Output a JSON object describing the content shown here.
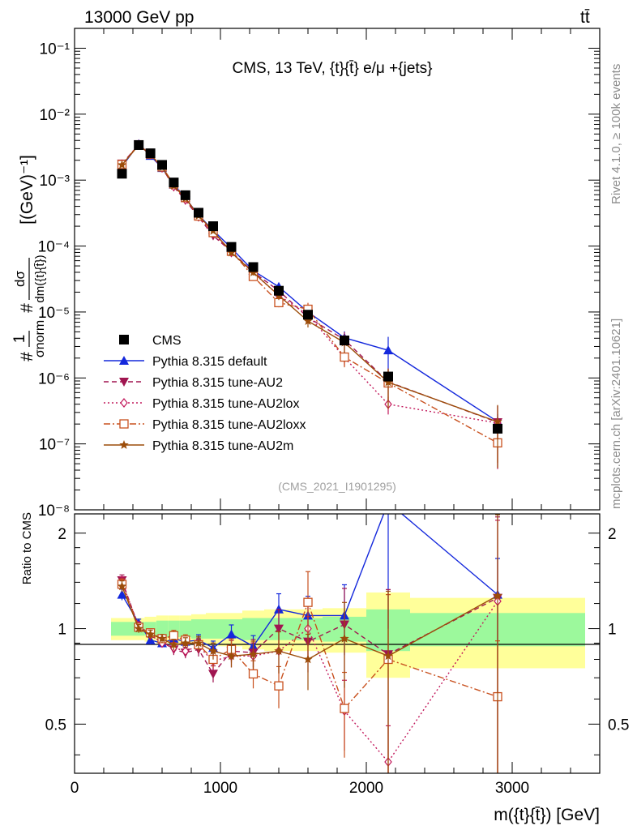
{
  "header": {
    "left": "13000 GeV pp",
    "right": "tt̄"
  },
  "side_labels": {
    "rivet": "Rivet 4.1.0, ≥ 100k events",
    "mcplots": "mcplots.cern.ch [arXiv:2401.10621]"
  },
  "chart_data": {
    "type": "line",
    "title": "CMS, 13 TeV, {t}{t̄} e/μ +{jets}",
    "watermark": "(CMS_2021_I1901295)",
    "xlabel": "m({t}{t̄}) [GeV]",
    "ylabel_main": "#1/σnorm # dσ/dm({t}{t̄}) [(GeV)⁻¹]",
    "ylabel_ratio": "Ratio to CMS",
    "xlim": [
      0,
      3600
    ],
    "ylim_main": [
      1e-08,
      0.2
    ],
    "ylim_ratio": [
      0.35,
      2.3
    ],
    "x_ticks": [
      "0",
      "1000",
      "2000",
      "3000"
    ],
    "y_ticks_main": [
      "10⁻⁸",
      "10⁻⁷",
      "10⁻⁶",
      "10⁻⁵",
      "10⁻⁴",
      "10⁻³",
      "10⁻²",
      "10⁻¹"
    ],
    "y_ticks_ratio": [
      "0.5",
      "1",
      "2"
    ],
    "bins": [
      [
        250,
        400
      ],
      [
        400,
        480
      ],
      [
        480,
        560
      ],
      [
        560,
        640
      ],
      [
        640,
        720
      ],
      [
        720,
        800
      ],
      [
        800,
        900
      ],
      [
        900,
        1000
      ],
      [
        1000,
        1150
      ],
      [
        1150,
        1300
      ],
      [
        1300,
        1500
      ],
      [
        1500,
        1700
      ],
      [
        1700,
        2000
      ],
      [
        2000,
        2300
      ],
      [
        2300,
        3500
      ]
    ],
    "x": [
      325,
      440,
      520,
      600,
      680,
      760,
      850,
      950,
      1075,
      1225,
      1400,
      1600,
      1850,
      2150,
      2900
    ],
    "data": {
      "name": "CMS",
      "values": [
        0.00125,
        0.0034,
        0.00255,
        0.0017,
        0.00092,
        0.00059,
        0.00032,
        0.0002,
        9.7e-05,
        4.8e-05,
        2.1e-05,
        9.1e-06,
        3.7e-06,
        1.05e-06,
        1.7e-07
      ],
      "band_inner": [
        0.05,
        0.05,
        0.05,
        0.06,
        0.06,
        0.06,
        0.07,
        0.07,
        0.07,
        0.08,
        0.08,
        0.08,
        0.09,
        0.15,
        0.12
      ],
      "band_outer": [
        0.08,
        0.08,
        0.09,
        0.1,
        0.1,
        0.1,
        0.11,
        0.12,
        0.12,
        0.14,
        0.15,
        0.15,
        0.16,
        0.3,
        0.25
      ]
    },
    "series": [
      {
        "name": "Pythia 8.315 default",
        "color": "#1428dc",
        "marker": "triangle-up",
        "dash": "",
        "ratio": [
          1.28,
          1.04,
          0.92,
          0.9,
          0.93,
          0.91,
          0.92,
          0.87,
          0.96,
          0.88,
          1.15,
          1.1,
          1.1,
          2.5,
          1.28
        ],
        "err": [
          0.04,
          0.03,
          0.03,
          0.03,
          0.03,
          0.04,
          0.04,
          0.05,
          0.07,
          0.08,
          0.12,
          0.15,
          0.25,
          0.6,
          0.3
        ]
      },
      {
        "name": "Pythia 8.315 tune-AU2",
        "color": "#a01550",
        "marker": "triangle-down",
        "dash": "6,4",
        "ratio": [
          1.42,
          1.01,
          0.95,
          0.91,
          0.86,
          0.84,
          0.86,
          0.72,
          0.85,
          0.84,
          1.0,
          0.91,
          1.03,
          0.83,
          1.25
        ],
        "err": [
          0.04,
          0.03,
          0.03,
          0.03,
          0.04,
          0.04,
          0.05,
          0.06,
          0.08,
          0.1,
          0.15,
          0.2,
          0.3,
          0.6,
          0.8
        ]
      },
      {
        "name": "Pythia 8.315 tune-AU2lox",
        "color": "#c2185b",
        "marker": "diamond",
        "dash": "2,3",
        "ratio": [
          1.4,
          1.02,
          0.96,
          0.9,
          0.87,
          0.85,
          0.88,
          0.79,
          0.82,
          0.82,
          0.85,
          1.0,
          0.55,
          0.38,
          1.22
        ],
        "err": [
          0.04,
          0.03,
          0.03,
          0.03,
          0.04,
          0.04,
          0.05,
          0.06,
          0.08,
          0.1,
          0.15,
          0.2,
          0.25,
          0.3,
          0.8
        ]
      },
      {
        "name": "Pythia 8.315 tune-AU2loxx",
        "color": "#c8501e",
        "marker": "square-open",
        "dash": "8,3,2,3",
        "ratio": [
          1.38,
          1.01,
          0.97,
          0.93,
          0.95,
          0.92,
          0.89,
          0.8,
          0.86,
          0.72,
          0.66,
          1.21,
          0.56,
          0.8,
          0.61
        ],
        "err": [
          0.04,
          0.03,
          0.03,
          0.03,
          0.04,
          0.04,
          0.05,
          0.06,
          0.08,
          0.1,
          0.15,
          0.25,
          0.3,
          0.6,
          0.5
        ]
      },
      {
        "name": "Pythia 8.315 tune-AU2m",
        "color": "#9c4d0a",
        "marker": "star",
        "dash": "",
        "ratio": [
          1.36,
          1.0,
          0.96,
          0.93,
          0.89,
          0.9,
          0.9,
          0.85,
          0.82,
          0.83,
          0.85,
          0.8,
          0.93,
          0.82,
          1.27
        ],
        "err": [
          0.04,
          0.03,
          0.03,
          0.03,
          0.04,
          0.04,
          0.05,
          0.06,
          0.08,
          0.1,
          0.15,
          0.2,
          0.3,
          0.6,
          0.8
        ]
      }
    ]
  }
}
